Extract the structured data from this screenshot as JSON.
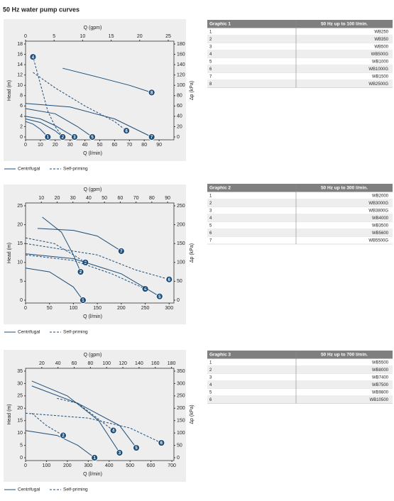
{
  "title": "50 Hz water pump curves",
  "chart_data": [
    {
      "type": "line",
      "x_label": "Q (l/min)",
      "x2_label": "Q (gpm)",
      "y_label": "Head (m)",
      "y2_label": "Δp (kPa)",
      "xlim": [
        0,
        100
      ],
      "xticks": [
        0,
        10,
        20,
        30,
        40,
        50,
        60,
        70,
        80,
        90
      ],
      "x2lim": [
        0,
        26
      ],
      "x2ticks": [
        0,
        5,
        10,
        15,
        20,
        25
      ],
      "ylim": [
        0,
        18
      ],
      "yticks": [
        0,
        2,
        4,
        6,
        8,
        10,
        12,
        14,
        16,
        18
      ],
      "y2lim": [
        0,
        180
      ],
      "y2ticks": [
        0,
        20,
        40,
        60,
        80,
        100,
        120,
        140,
        160,
        180
      ],
      "legend": [
        "Centrifugal",
        "Self-priming"
      ],
      "series": [
        {
          "name": "1",
          "style": "solid",
          "color": "#1f4e79",
          "x": [
            0,
            5,
            10,
            15
          ],
          "values": [
            3,
            2.5,
            1.5,
            0
          ]
        },
        {
          "name": "2",
          "style": "solid",
          "color": "#1f4e79",
          "x": [
            0,
            10,
            20,
            25
          ],
          "values": [
            3.5,
            2.8,
            1.2,
            0
          ]
        },
        {
          "name": "3",
          "style": "solid",
          "color": "#1f4e79",
          "x": [
            0,
            10,
            20,
            30,
            33
          ],
          "values": [
            4,
            3.5,
            2.2,
            0.5,
            0
          ]
        },
        {
          "name": "4",
          "style": "dashed",
          "color": "#1f4e79",
          "x": [
            25,
            20,
            15,
            5
          ],
          "values": [
            0,
            2,
            5,
            15.5
          ]
        },
        {
          "name": "5",
          "style": "solid",
          "color": "#1f4e79",
          "x": [
            0,
            20,
            35,
            45
          ],
          "values": [
            5.5,
            4.5,
            2,
            0
          ]
        },
        {
          "name": "6",
          "style": "dashed",
          "color": "#1f4e79",
          "x": [
            5,
            20,
            40,
            60,
            68
          ],
          "values": [
            12.5,
            9.5,
            6,
            3,
            1.2
          ]
        },
        {
          "name": "7",
          "style": "solid",
          "color": "#1f4e79",
          "x": [
            0,
            30,
            60,
            85
          ],
          "values": [
            6.5,
            5.8,
            3.5,
            0
          ]
        },
        {
          "name": "8",
          "style": "solid",
          "color": "#1f4e79",
          "x": [
            25,
            50,
            70,
            85
          ],
          "values": [
            13.3,
            11.5,
            10,
            8.6
          ]
        }
      ]
    },
    {
      "type": "line",
      "x_label": "Q (l/min)",
      "x2_label": "Q (gpm)",
      "y_label": "Head (m)",
      "y2_label": "Δp (kPa)",
      "xlim": [
        0,
        310
      ],
      "xticks": [
        0,
        50,
        100,
        150,
        200,
        250,
        300
      ],
      "x2lim": [
        0,
        94
      ],
      "x2ticks": [
        10,
        20,
        30,
        40,
        50,
        60,
        70,
        80,
        90
      ],
      "ylim": [
        0,
        25
      ],
      "yticks": [
        0,
        5,
        10,
        15,
        20,
        25
      ],
      "y2lim": [
        0,
        250
      ],
      "y2ticks": [
        0,
        50,
        100,
        150,
        200,
        250
      ],
      "legend": [
        "Centrifugal",
        "Self-priming"
      ],
      "series": [
        {
          "name": "1",
          "style": "solid",
          "color": "#1f4e79",
          "x": [
            0,
            50,
            100,
            120
          ],
          "values": [
            8.5,
            7.5,
            3.5,
            0
          ]
        },
        {
          "name": "2",
          "style": "solid",
          "color": "#1f4e79",
          "x": [
            35,
            75,
            100,
            115
          ],
          "values": [
            22,
            18,
            12,
            7.5
          ]
        },
        {
          "name": "3",
          "style": "dashed",
          "color": "#1f4e79",
          "x": [
            0,
            60,
            100,
            125
          ],
          "values": [
            16.5,
            15,
            12,
            10
          ]
        },
        {
          "name": "4",
          "style": "dashed",
          "color": "#1f4e79",
          "x": [
            0,
            100,
            180,
            250
          ],
          "values": [
            12,
            10.5,
            7,
            3
          ]
        },
        {
          "name": "5",
          "style": "solid",
          "color": "#1f4e79",
          "x": [
            0,
            100,
            200,
            280
          ],
          "values": [
            12.3,
            11,
            7,
            1
          ]
        },
        {
          "name": "6",
          "style": "dashed",
          "color": "#1f4e79",
          "x": [
            0,
            150,
            230,
            300
          ],
          "values": [
            15,
            12,
            8,
            5.5
          ]
        },
        {
          "name": "7",
          "style": "solid",
          "color": "#1f4e79",
          "x": [
            25,
            100,
            150,
            200
          ],
          "values": [
            19,
            18.5,
            17,
            13
          ]
        }
      ]
    },
    {
      "type": "line",
      "x_label": "Q (l/min)",
      "x2_label": "Q (gpm)",
      "y_label": "Head (m)",
      "y2_label": "Δp (kPa)",
      "xlim": [
        0,
        710
      ],
      "xticks": [
        0,
        100,
        200,
        300,
        400,
        500,
        600,
        700
      ],
      "x2lim": [
        0,
        183
      ],
      "x2ticks": [
        20,
        40,
        60,
        80,
        100,
        120,
        140,
        160,
        180
      ],
      "ylim": [
        0,
        35
      ],
      "yticks": [
        0,
        5,
        10,
        15,
        20,
        25,
        30,
        35
      ],
      "y2lim": [
        0,
        350
      ],
      "y2ticks": [
        0,
        50,
        100,
        150,
        200,
        250,
        300,
        350
      ],
      "legend": [
        "Centrifugal",
        "Self-priming"
      ],
      "series": [
        {
          "name": "1",
          "style": "solid",
          "color": "#1f4e79",
          "x": [
            0,
            150,
            250,
            330
          ],
          "values": [
            11,
            9,
            5,
            0
          ]
        },
        {
          "name": "2",
          "style": "dashed",
          "color": "#1f4e79",
          "x": [
            30,
            100,
            180
          ],
          "values": [
            18,
            13,
            9
          ]
        },
        {
          "name": "3",
          "style": "solid",
          "color": "#1f4e79",
          "x": [
            30,
            200,
            350,
            450
          ],
          "values": [
            31,
            25,
            15,
            2
          ]
        },
        {
          "name": "4",
          "style": "dashed",
          "color": "#1f4e79",
          "x": [
            150,
            250,
            420
          ],
          "values": [
            24,
            22,
            11
          ]
        },
        {
          "name": "5",
          "style": "solid",
          "color": "#1f4e79",
          "x": [
            30,
            250,
            450,
            530
          ],
          "values": [
            29,
            22,
            13,
            4
          ]
        },
        {
          "name": "6",
          "style": "dashed",
          "color": "#1f4e79",
          "x": [
            0,
            300,
            500,
            650
          ],
          "values": [
            18,
            16,
            12,
            6
          ]
        }
      ]
    }
  ],
  "tables": [
    {
      "header": [
        "Graphic 1",
        "50 Hz up to 100 l/min."
      ],
      "rows": [
        [
          "1",
          "WB250"
        ],
        [
          "2",
          "WB350"
        ],
        [
          "3",
          "WB500"
        ],
        [
          "4",
          "WB500G"
        ],
        [
          "5",
          "WB1000"
        ],
        [
          "6",
          "WB1000G"
        ],
        [
          "7",
          "WB1500"
        ],
        [
          "8",
          "WB2500G"
        ]
      ]
    },
    {
      "header": [
        "Graphic 2",
        "50 Hz up to 300 l/min."
      ],
      "rows": [
        [
          "1",
          "WB2000"
        ],
        [
          "2",
          "WB3000G"
        ],
        [
          "3",
          "WB3800G"
        ],
        [
          "4",
          "WB4000"
        ],
        [
          "5",
          "WB3500"
        ],
        [
          "6",
          "WB5600"
        ],
        [
          "7",
          "WB5500G"
        ]
      ]
    },
    {
      "header": [
        "Graphic 3",
        "50 Hz up to 700 l/min."
      ],
      "rows": [
        [
          "1",
          "WB5500"
        ],
        [
          "2",
          "WB8000"
        ],
        [
          "3",
          "WB7400"
        ],
        [
          "4",
          "WB7500"
        ],
        [
          "5",
          "WB9800"
        ],
        [
          "6",
          "WB10500"
        ]
      ]
    }
  ]
}
